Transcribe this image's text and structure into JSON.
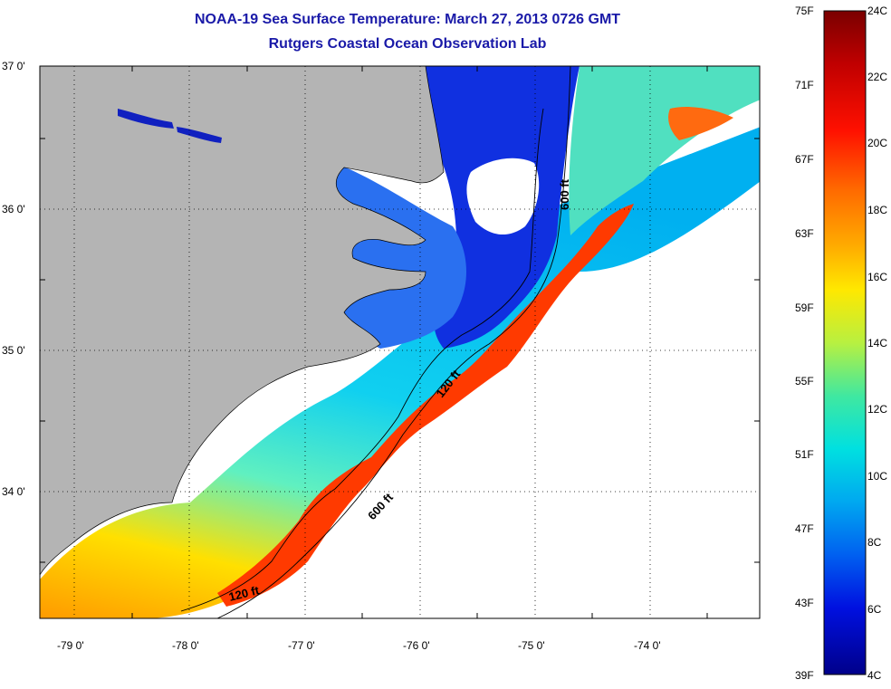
{
  "header": {
    "title_line1": "NOAA-19 Sea Surface Temperature:  March 27, 2013 0726 GMT",
    "title_line2": "Rutgers Coastal Ocean Observation Lab"
  },
  "map": {
    "lat_labels": [
      "37 0'",
      "36 0'",
      "35 0'",
      "34 0'"
    ],
    "lon_labels": [
      "-79 0'",
      "-78 0'",
      "-77 0'",
      "-76 0'",
      "-75 0'",
      "-74 0'"
    ],
    "contours": [
      {
        "label": "600 ft"
      },
      {
        "label": "120 ft"
      },
      {
        "label": "600 ft"
      },
      {
        "label": "120 ft"
      }
    ],
    "colors": {
      "land": "#b4b4b4",
      "no_data": "#ffffff"
    }
  },
  "colorbar": {
    "fahrenheit_labels": [
      "75F",
      "71F",
      "67F",
      "63F",
      "59F",
      "55F",
      "51F",
      "47F",
      "43F",
      "39F"
    ],
    "celsius_labels": [
      "24C",
      "22C",
      "20C",
      "18C",
      "16C",
      "14C",
      "12C",
      "10C",
      "8C",
      "6C",
      "4C"
    ],
    "gradient_colors": [
      "#7a0000",
      "#c00000",
      "#ff1000",
      "#ff6a00",
      "#ffb000",
      "#ffe800",
      "#b8f040",
      "#40e8a0",
      "#00e0e0",
      "#00a8f0",
      "#0060f0",
      "#0010e0",
      "#00008a"
    ]
  }
}
